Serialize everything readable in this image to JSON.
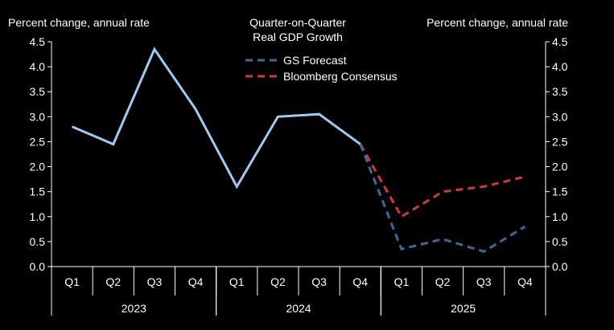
{
  "chart_data": {
    "type": "line",
    "title": "Quarter-on-Quarter Real GDP Growth",
    "title_lines": [
      "Quarter-on-Quarter",
      "Real GDP Growth"
    ],
    "ylabel_left": "Percent change, annual rate",
    "ylabel_right": "Percent change, annual rate",
    "ylim": [
      0,
      4.5
    ],
    "yticks": [
      "0.0",
      "0.5",
      "1.0",
      "1.5",
      "2.0",
      "2.5",
      "3.0",
      "3.5",
      "4.0",
      "4.5"
    ],
    "categories": [
      "Q1",
      "Q2",
      "Q3",
      "Q4",
      "Q1",
      "Q2",
      "Q3",
      "Q4",
      "Q1",
      "Q2",
      "Q3",
      "Q4"
    ],
    "years": [
      {
        "label": "2023",
        "start": 0,
        "end": 3
      },
      {
        "label": "2024",
        "start": 4,
        "end": 7
      },
      {
        "label": "2025",
        "start": 8,
        "end": 11
      }
    ],
    "legend_position": "top-center",
    "series": [
      {
        "name": "Actual",
        "style": "solid",
        "color": "#9ecbf0",
        "in_legend": false,
        "values": [
          2.8,
          2.45,
          4.35,
          3.15,
          1.6,
          3.0,
          3.05,
          2.45,
          null,
          null,
          null,
          null
        ]
      },
      {
        "name": "GS Forecast",
        "style": "dashed",
        "color": "#3d6996",
        "in_legend": true,
        "values": [
          null,
          null,
          null,
          null,
          null,
          null,
          null,
          2.45,
          0.35,
          0.55,
          0.3,
          0.8
        ]
      },
      {
        "name": "Bloomberg Consensus",
        "style": "dashed",
        "color": "#d2373b",
        "in_legend": true,
        "values": [
          null,
          null,
          null,
          null,
          null,
          null,
          null,
          2.45,
          1.0,
          1.5,
          1.6,
          1.8
        ]
      }
    ]
  }
}
